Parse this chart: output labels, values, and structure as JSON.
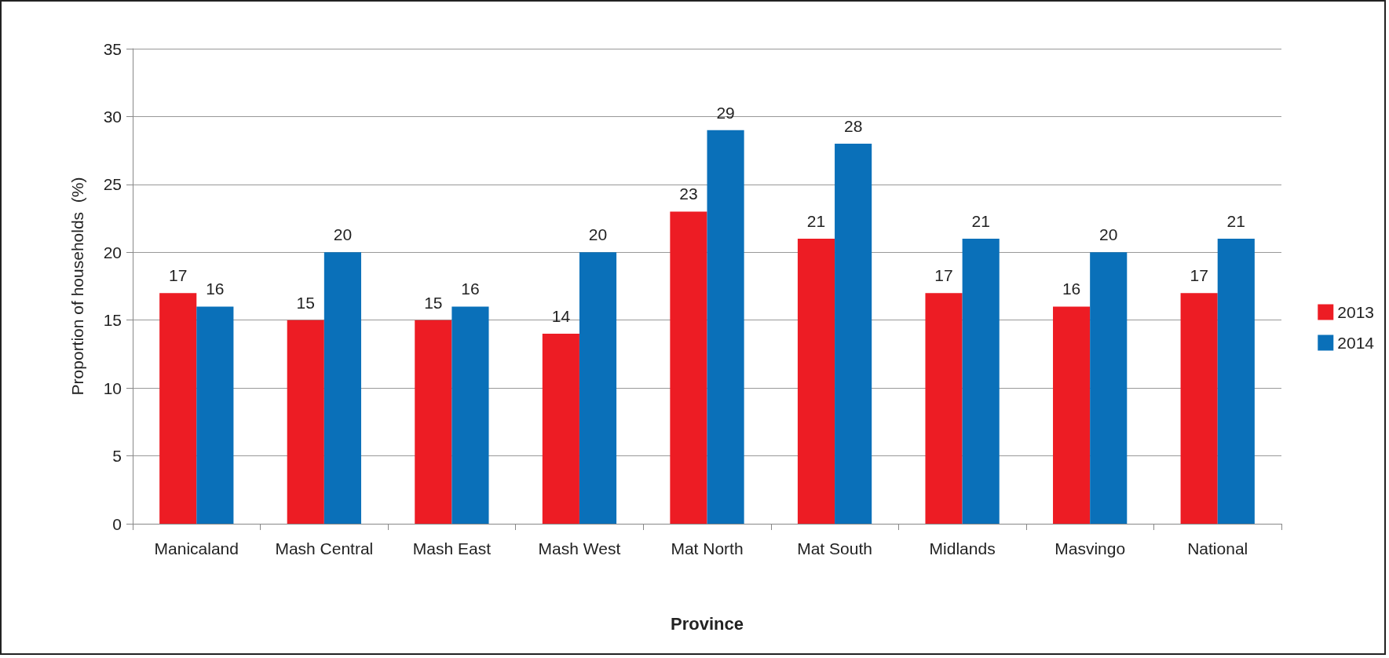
{
  "chart_data": {
    "type": "bar",
    "xlabel": "Province",
    "ylabel": "Proportion of households  (%)",
    "categories": [
      "Manicaland",
      "Mash Central",
      "Mash East",
      "Mash West",
      "Mat North",
      "Mat South",
      "Midlands",
      "Masvingo",
      "National"
    ],
    "series": [
      {
        "name": "2013",
        "color": "#ed1c24",
        "values": [
          17,
          15,
          15,
          14,
          23,
          21,
          17,
          16,
          17
        ]
      },
      {
        "name": "2014",
        "color": "#0a70b9",
        "values": [
          16,
          20,
          16,
          20,
          29,
          28,
          21,
          20,
          21
        ]
      }
    ],
    "ylim": [
      0,
      35
    ],
    "yticks": [
      0,
      5,
      10,
      15,
      20,
      25,
      30,
      35
    ],
    "grid": "y",
    "legend": "right",
    "data_labels": true
  }
}
